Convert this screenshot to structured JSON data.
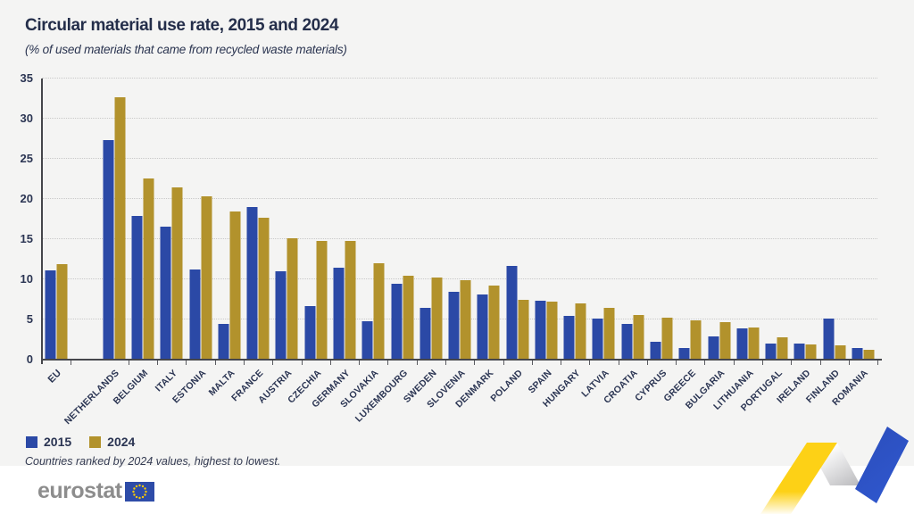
{
  "title": "Circular material use rate, 2015 and 2024",
  "subtitle": "(% of used materials that came from recycled waste materials)",
  "footnote": "Countries ranked by 2024 values, highest to lowest.",
  "logo": {
    "text": "eurostat",
    "flag_icon": "eu-flag-icon"
  },
  "icons": {
    "decoration": "eurostat-zigzag-ribbon"
  },
  "colors": {
    "bar_2015": "#2b49a6",
    "bar_2024": "#b2922c",
    "background_card": "#f4f4f3",
    "text_navy": "#2b3553",
    "ribbon_yellow": "#fdd116",
    "ribbon_blue": "#2b4dbb"
  },
  "chart_data": {
    "type": "bar",
    "title": "Circular material use rate, 2015 and 2024",
    "ylabel": "",
    "xlabel": "",
    "ylim": [
      0,
      35
    ],
    "yticks": [
      0,
      5,
      10,
      15,
      20,
      25,
      30,
      35
    ],
    "grid": "horizontal-dotted",
    "legend_position": "bottom-left",
    "eu_separator": true,
    "categories": [
      "EU",
      "NETHERLANDS",
      "BELGIUM",
      "ITALY",
      "ESTONIA",
      "MALTA",
      "FRANCE",
      "AUSTRIA",
      "CZECHIA",
      "GERMANY",
      "SLOVAKIA",
      "LUXEMBOURG",
      "SWEDEN",
      "SLOVENIA",
      "DENMARK",
      "POLAND",
      "SPAIN",
      "HUNGARY",
      "LATVIA",
      "CROATIA",
      "CYPRUS",
      "GREECE",
      "BULGARIA",
      "LITHUANIA",
      "PORTUGAL",
      "IRELAND",
      "FINLAND",
      "ROMANIA"
    ],
    "series": [
      {
        "name": "2015",
        "color": "#2b49a6",
        "values": [
          11.1,
          27.3,
          17.9,
          16.6,
          11.2,
          4.4,
          19.0,
          11.0,
          6.7,
          11.5,
          4.8,
          9.4,
          6.5,
          8.4,
          8.1,
          11.7,
          7.3,
          5.5,
          5.1,
          4.4,
          2.2,
          1.5,
          2.9,
          3.9,
          2.0,
          2.0,
          5.1,
          1.4
        ]
      },
      {
        "name": "2024",
        "color": "#b2922c",
        "values": [
          11.9,
          32.7,
          22.6,
          21.5,
          20.3,
          18.5,
          17.7,
          15.1,
          14.8,
          14.8,
          12.0,
          10.5,
          10.2,
          9.9,
          9.2,
          7.5,
          7.2,
          7.0,
          6.5,
          5.6,
          5.2,
          4.9,
          4.7,
          4.0,
          2.8,
          1.9,
          1.8,
          1.2
        ]
      }
    ]
  }
}
